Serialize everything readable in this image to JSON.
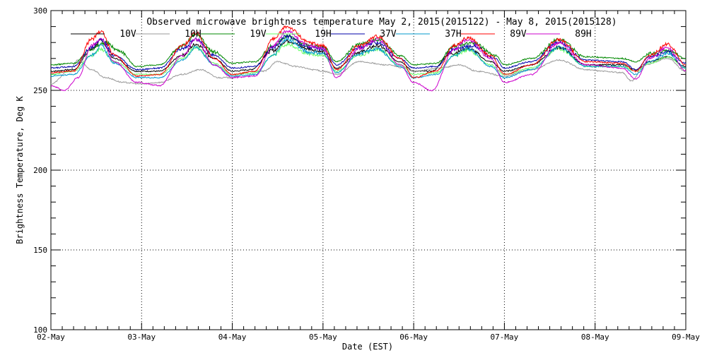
{
  "chart_data": {
    "type": "line",
    "title": "Observed microwave brightness temperature May  2, 2015(2015122) - May  8, 2015(2015128)",
    "xlabel": "Date (EST)",
    "ylabel": "Brightness Temperature, Deg K",
    "ylim": [
      100,
      300
    ],
    "xlim": [
      0,
      7
    ],
    "x_ticks": [
      "02-May",
      "03-May",
      "04-May",
      "05-May",
      "06-May",
      "07-May",
      "08-May",
      "09-May"
    ],
    "y_ticks": [
      100,
      150,
      200,
      250,
      300
    ],
    "grid": true,
    "legend_position": "top",
    "x_unit": "days since 02-May 00:00",
    "series": [
      {
        "name": "10V",
        "color": "#000000",
        "points": [
          [
            0,
            262
          ],
          [
            0.25,
            263
          ],
          [
            0.45,
            276
          ],
          [
            0.55,
            281
          ],
          [
            0.7,
            270
          ],
          [
            0.95,
            262
          ],
          [
            1.2,
            262
          ],
          [
            1.45,
            272
          ],
          [
            1.6,
            279
          ],
          [
            1.8,
            270
          ],
          [
            2.0,
            262
          ],
          [
            2.2,
            263
          ],
          [
            2.45,
            275
          ],
          [
            2.6,
            281
          ],
          [
            2.85,
            276
          ],
          [
            3.0,
            274
          ],
          [
            3.15,
            264
          ],
          [
            3.4,
            274
          ],
          [
            3.6,
            278
          ],
          [
            3.85,
            268
          ],
          [
            4.0,
            262
          ],
          [
            4.2,
            262
          ],
          [
            4.4,
            273
          ],
          [
            4.6,
            276
          ],
          [
            4.85,
            268
          ],
          [
            5.0,
            262
          ],
          [
            5.3,
            266
          ],
          [
            5.6,
            277
          ],
          [
            5.9,
            266
          ],
          [
            6.3,
            266
          ],
          [
            6.45,
            263
          ],
          [
            6.6,
            268
          ],
          [
            6.8,
            271
          ],
          [
            7.0,
            265
          ]
        ]
      },
      {
        "name": "10H",
        "color": "#999999",
        "points": [
          [
            0,
            254
          ],
          [
            0.2,
            262
          ],
          [
            0.3,
            269
          ],
          [
            0.45,
            263
          ],
          [
            0.6,
            258
          ],
          [
            0.8,
            255
          ],
          [
            1.0,
            254
          ],
          [
            1.2,
            255
          ],
          [
            1.45,
            260
          ],
          [
            1.65,
            263
          ],
          [
            1.85,
            258
          ],
          [
            2.0,
            258
          ],
          [
            2.2,
            262
          ],
          [
            2.35,
            262
          ],
          [
            2.5,
            268
          ],
          [
            2.7,
            265
          ],
          [
            2.9,
            263
          ],
          [
            3.0,
            262
          ],
          [
            3.15,
            260
          ],
          [
            3.4,
            268
          ],
          [
            3.7,
            266
          ],
          [
            3.9,
            264
          ],
          [
            4.0,
            262
          ],
          [
            4.3,
            264
          ],
          [
            4.5,
            266
          ],
          [
            4.7,
            262
          ],
          [
            5.0,
            259
          ],
          [
            5.3,
            263
          ],
          [
            5.6,
            269
          ],
          [
            5.9,
            263
          ],
          [
            6.1,
            262
          ],
          [
            6.3,
            261
          ],
          [
            6.4,
            256
          ],
          [
            6.55,
            266
          ],
          [
            6.8,
            270
          ],
          [
            7.0,
            262
          ]
        ]
      },
      {
        "name": "19V",
        "color": "#008800",
        "points": [
          [
            0,
            266
          ],
          [
            0.25,
            267
          ],
          [
            0.45,
            276
          ],
          [
            0.6,
            280
          ],
          [
            0.75,
            275
          ],
          [
            0.95,
            265
          ],
          [
            1.2,
            266
          ],
          [
            1.45,
            278
          ],
          [
            1.6,
            285
          ],
          [
            1.8,
            274
          ],
          [
            2.0,
            267
          ],
          [
            2.25,
            268
          ],
          [
            2.45,
            278
          ],
          [
            2.6,
            284
          ],
          [
            2.85,
            278
          ],
          [
            3.0,
            277
          ],
          [
            3.15,
            268
          ],
          [
            3.4,
            279
          ],
          [
            3.6,
            282
          ],
          [
            3.85,
            272
          ],
          [
            4.0,
            266
          ],
          [
            4.25,
            267
          ],
          [
            4.45,
            278
          ],
          [
            4.65,
            280
          ],
          [
            4.9,
            272
          ],
          [
            5.0,
            266
          ],
          [
            5.3,
            270
          ],
          [
            5.6,
            282
          ],
          [
            5.9,
            271
          ],
          [
            6.3,
            270
          ],
          [
            6.45,
            268
          ],
          [
            6.6,
            273
          ],
          [
            6.8,
            275
          ],
          [
            7.0,
            270
          ]
        ]
      },
      {
        "name": "19H",
        "color": "#66ff66",
        "points": [
          [
            0,
            260
          ],
          [
            0.25,
            262
          ],
          [
            0.45,
            272
          ],
          [
            0.55,
            276
          ],
          [
            0.7,
            268
          ],
          [
            0.95,
            260
          ],
          [
            1.2,
            260
          ],
          [
            1.45,
            270
          ],
          [
            1.6,
            277
          ],
          [
            1.8,
            267
          ],
          [
            2.0,
            260
          ],
          [
            2.25,
            261
          ],
          [
            2.45,
            272
          ],
          [
            2.6,
            279
          ],
          [
            2.85,
            273
          ],
          [
            3.0,
            272
          ],
          [
            3.15,
            262
          ],
          [
            3.4,
            272
          ],
          [
            3.6,
            276
          ],
          [
            3.85,
            266
          ],
          [
            4.0,
            260
          ],
          [
            4.25,
            261
          ],
          [
            4.45,
            272
          ],
          [
            4.6,
            275
          ],
          [
            4.85,
            266
          ],
          [
            5.0,
            260
          ],
          [
            5.3,
            264
          ],
          [
            5.6,
            276
          ],
          [
            5.9,
            265
          ],
          [
            6.3,
            265
          ],
          [
            6.45,
            262
          ],
          [
            6.6,
            267
          ],
          [
            6.8,
            271
          ],
          [
            7.0,
            264
          ]
        ]
      },
      {
        "name": "37V",
        "color": "#0000aa",
        "points": [
          [
            0,
            264
          ],
          [
            0.25,
            265
          ],
          [
            0.45,
            277
          ],
          [
            0.55,
            282
          ],
          [
            0.7,
            272
          ],
          [
            0.95,
            263
          ],
          [
            1.2,
            264
          ],
          [
            1.45,
            276
          ],
          [
            1.6,
            282
          ],
          [
            1.8,
            272
          ],
          [
            2.0,
            264
          ],
          [
            2.25,
            265
          ],
          [
            2.45,
            277
          ],
          [
            2.6,
            284
          ],
          [
            2.85,
            277
          ],
          [
            3.0,
            276
          ],
          [
            3.15,
            266
          ],
          [
            3.4,
            277
          ],
          [
            3.6,
            280
          ],
          [
            3.85,
            270
          ],
          [
            4.0,
            264
          ],
          [
            4.25,
            265
          ],
          [
            4.45,
            276
          ],
          [
            4.65,
            278
          ],
          [
            4.9,
            270
          ],
          [
            5.0,
            264
          ],
          [
            5.3,
            268
          ],
          [
            5.6,
            280
          ],
          [
            5.9,
            269
          ],
          [
            6.3,
            268
          ],
          [
            6.45,
            263
          ],
          [
            6.6,
            271
          ],
          [
            6.8,
            274
          ],
          [
            7.0,
            267
          ]
        ]
      },
      {
        "name": "37H",
        "color": "#0099cc",
        "points": [
          [
            0,
            259
          ],
          [
            0.25,
            260
          ],
          [
            0.45,
            272
          ],
          [
            0.55,
            278
          ],
          [
            0.7,
            267
          ],
          [
            0.95,
            258
          ],
          [
            1.2,
            258
          ],
          [
            1.45,
            269
          ],
          [
            1.6,
            277
          ],
          [
            1.8,
            266
          ],
          [
            2.0,
            259
          ],
          [
            2.25,
            260
          ],
          [
            2.45,
            272
          ],
          [
            2.6,
            282
          ],
          [
            2.85,
            274
          ],
          [
            3.0,
            273
          ],
          [
            3.15,
            261
          ],
          [
            3.4,
            273
          ],
          [
            3.6,
            276
          ],
          [
            3.85,
            265
          ],
          [
            4.0,
            258
          ],
          [
            4.25,
            260
          ],
          [
            4.45,
            272
          ],
          [
            4.6,
            276
          ],
          [
            4.85,
            265
          ],
          [
            5.0,
            258
          ],
          [
            5.3,
            263
          ],
          [
            5.6,
            277
          ],
          [
            5.9,
            265
          ],
          [
            6.3,
            265
          ],
          [
            6.45,
            260
          ],
          [
            6.6,
            268
          ],
          [
            6.8,
            273
          ],
          [
            7.0,
            264
          ]
        ]
      },
      {
        "name": "89V",
        "color": "#ff0000",
        "points": [
          [
            0,
            261
          ],
          [
            0.25,
            262
          ],
          [
            0.45,
            282
          ],
          [
            0.55,
            287
          ],
          [
            0.7,
            272
          ],
          [
            0.95,
            259
          ],
          [
            1.2,
            260
          ],
          [
            1.45,
            278
          ],
          [
            1.6,
            286
          ],
          [
            1.8,
            270
          ],
          [
            2.0,
            260
          ],
          [
            2.25,
            262
          ],
          [
            2.45,
            282
          ],
          [
            2.6,
            290
          ],
          [
            2.85,
            280
          ],
          [
            3.0,
            278
          ],
          [
            3.15,
            263
          ],
          [
            3.4,
            278
          ],
          [
            3.6,
            284
          ],
          [
            3.85,
            270
          ],
          [
            4.0,
            258
          ],
          [
            4.25,
            262
          ],
          [
            4.45,
            278
          ],
          [
            4.6,
            283
          ],
          [
            4.85,
            272
          ],
          [
            5.0,
            260
          ],
          [
            5.3,
            266
          ],
          [
            5.6,
            282
          ],
          [
            5.9,
            268
          ],
          [
            6.3,
            267
          ],
          [
            6.45,
            262
          ],
          [
            6.6,
            272
          ],
          [
            6.8,
            279
          ],
          [
            7.0,
            266
          ]
        ]
      },
      {
        "name": "89H",
        "color": "#cc00cc",
        "points": [
          [
            0,
            253
          ],
          [
            0.15,
            250
          ],
          [
            0.3,
            258
          ],
          [
            0.45,
            278
          ],
          [
            0.55,
            282
          ],
          [
            0.7,
            268
          ],
          [
            0.95,
            255
          ],
          [
            1.2,
            253
          ],
          [
            1.45,
            272
          ],
          [
            1.6,
            282
          ],
          [
            1.8,
            266
          ],
          [
            2.0,
            258
          ],
          [
            2.25,
            259
          ],
          [
            2.45,
            278
          ],
          [
            2.6,
            287
          ],
          [
            2.85,
            278
          ],
          [
            3.0,
            276
          ],
          [
            3.15,
            258
          ],
          [
            3.4,
            276
          ],
          [
            3.6,
            282
          ],
          [
            3.85,
            266
          ],
          [
            4.0,
            255
          ],
          [
            4.2,
            250
          ],
          [
            4.45,
            276
          ],
          [
            4.6,
            282
          ],
          [
            4.85,
            270
          ],
          [
            5.0,
            255
          ],
          [
            5.3,
            260
          ],
          [
            5.6,
            280
          ],
          [
            5.9,
            266
          ],
          [
            6.3,
            264
          ],
          [
            6.45,
            257
          ],
          [
            6.6,
            270
          ],
          [
            6.8,
            277
          ],
          [
            7.0,
            262
          ]
        ]
      }
    ]
  }
}
